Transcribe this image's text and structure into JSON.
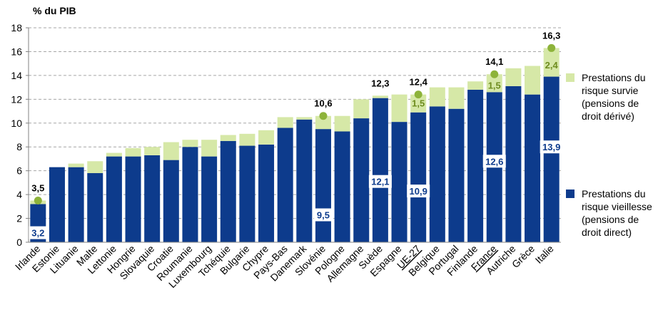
{
  "chart_data": {
    "type": "bar",
    "stacked": true,
    "ylabel": "% du PIB",
    "ylim": [
      0,
      18
    ],
    "yticks": [
      "0",
      "2",
      "4",
      "6",
      "8",
      "10",
      "12",
      "14",
      "16",
      "18"
    ],
    "grid": true,
    "legend_position": "right",
    "categories": [
      "Irlande",
      "Estonie",
      "Lituanie",
      "Malte",
      "Lettonie",
      "Hongrie",
      "Slovaquie",
      "Croatie",
      "Roumanie",
      "Luxembourg",
      "Tchéquie",
      "Bulgarie",
      "Chypre",
      "Pays-Bas",
      "Danemark",
      "Slovénie",
      "Pologne",
      "Allemagne",
      "Suède",
      "Espagne",
      "UE-27",
      "Belgique",
      "Portugal",
      "Finlande",
      "France",
      "Autriche",
      "Grèce",
      "Italie"
    ],
    "underlined_categories": [
      "UE-27",
      "France"
    ],
    "series": [
      {
        "name": "Prestations du risque vieillesse (pensions de droit direct)",
        "color": "#0d3b8c",
        "values": [
          3.2,
          6.3,
          6.3,
          5.8,
          7.2,
          7.2,
          7.3,
          6.9,
          8.0,
          7.2,
          8.5,
          8.1,
          8.2,
          9.6,
          10.3,
          9.5,
          9.3,
          10.4,
          12.1,
          10.1,
          10.9,
          11.4,
          11.2,
          12.8,
          12.6,
          13.1,
          12.4,
          13.9
        ]
      },
      {
        "name": "Prestations du risque survie (pensions de droit dérivé)",
        "color": "#d6e8a7",
        "values": [
          0.3,
          0.0,
          0.3,
          1.0,
          0.3,
          0.7,
          0.7,
          1.5,
          0.6,
          1.4,
          0.5,
          1.0,
          1.2,
          0.9,
          0.2,
          1.1,
          1.3,
          1.6,
          0.2,
          2.3,
          1.5,
          1.6,
          1.8,
          0.7,
          1.5,
          1.5,
          2.4,
          2.4
        ]
      }
    ],
    "annotations": {
      "totals": [
        {
          "category": "Irlande",
          "label": "3,5",
          "value": 3.5,
          "marker": true
        },
        {
          "category": "Slovénie",
          "label": "10,6",
          "value": 10.6,
          "marker": true
        },
        {
          "category": "Suède",
          "label": "12,3",
          "value": 12.3,
          "marker": false
        },
        {
          "category": "UE-27",
          "label": "12,4",
          "value": 12.4,
          "marker": true
        },
        {
          "category": "France",
          "label": "14,1",
          "value": 14.1,
          "marker": true
        },
        {
          "category": "Italie",
          "label": "16,3",
          "value": 16.3,
          "marker": true
        }
      ],
      "bottom_labels": [
        {
          "category": "Irlande",
          "label": "3,2",
          "y": 0.8
        },
        {
          "category": "Slovénie",
          "label": "9,5",
          "y": 2.3
        },
        {
          "category": "Suède",
          "label": "12,1",
          "y": 5.1
        },
        {
          "category": "UE-27",
          "label": "10,9",
          "y": 4.3
        },
        {
          "category": "France",
          "label": "12,6",
          "y": 6.8
        },
        {
          "category": "Italie",
          "label": "13,9",
          "y": 8.0
        }
      ],
      "survie_labels": [
        {
          "category": "UE-27",
          "label": "1,5",
          "y": 11.7
        },
        {
          "category": "France",
          "label": "1,5",
          "y": 13.2
        },
        {
          "category": "Italie",
          "label": "2,4",
          "y": 14.9
        }
      ]
    },
    "colors": {
      "marker": "#8db33a",
      "survie_label": "#6e8c1f",
      "axis": "#808080",
      "grid": "#a6a6a6"
    }
  }
}
